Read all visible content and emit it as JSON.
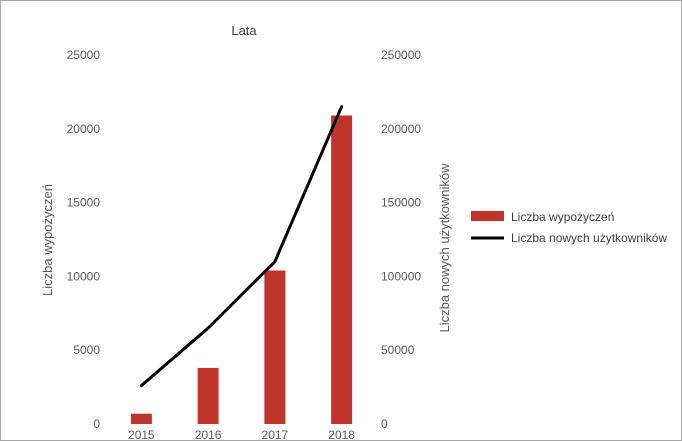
{
  "chart_data": {
    "type": "bar",
    "title": "Lata",
    "categories": [
      "2015",
      "2016",
      "2017",
      "2018"
    ],
    "ylabel": "Liczba wypożyczeń",
    "y2label": "Liczba nowych użytkowników",
    "ylim": [
      0,
      25000
    ],
    "y2lim": [
      0,
      250000
    ],
    "yticks": [
      "0",
      "5000",
      "10000",
      "15000",
      "20000",
      "25000"
    ],
    "y2ticks": [
      "0",
      "50000",
      "100000",
      "150000",
      "200000",
      "250000"
    ],
    "grid": false,
    "legend_position": "right",
    "series": [
      {
        "name": "Liczba wypożyczeń",
        "type": "bar",
        "axis": "left",
        "color": "#c0352b",
        "values": [
          700,
          3800,
          10400,
          20900
        ]
      },
      {
        "name": "Liczba nowych użytkowników",
        "type": "line",
        "axis": "right",
        "color": "#000000",
        "values": [
          26000,
          65000,
          110000,
          215000
        ]
      }
    ]
  }
}
